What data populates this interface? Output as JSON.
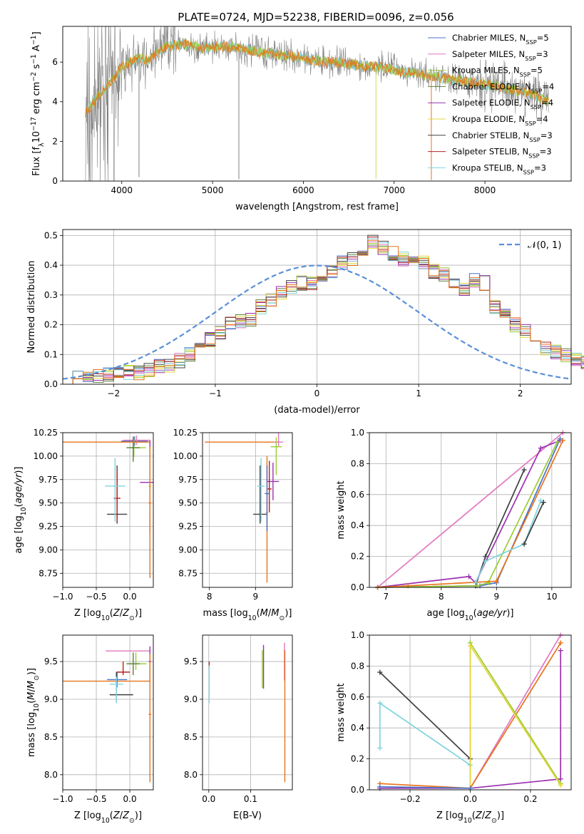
{
  "figure": {
    "title": "PLATE=0724, MJD=52238, FIBERID=0096, z=0.056"
  },
  "model_colors": {
    "Chabrier MILES": "#4c72c8",
    "Salpeter MILES": "#e377c2",
    "Kroupa MILES": "#9acd32",
    "Chabrier ELODIE": "#5b7f3a",
    "Salpeter ELODIE": "#9b30b0",
    "Kroupa ELODIE": "#e6d53c",
    "Chabrier STELIB": "#404040",
    "Salpeter STELIB": "#b22222",
    "Kroupa STELIB": "#7fd4df",
    "extra_orange": "#e8731c"
  },
  "chart_data": [
    {
      "type": "line",
      "panel": "spectrum",
      "xlabel": "wavelength [Angstrom, rest frame]",
      "ylabel": "Flux [f_λ 10^-17 erg cm^-2 s^-1 A^-1]",
      "xlim": [
        3350,
        8950
      ],
      "ylim": [
        0,
        7.8
      ],
      "xticks": [
        4000,
        5000,
        6000,
        7000,
        8000
      ],
      "yticks": [
        0,
        2,
        4,
        6
      ],
      "grid": false,
      "legend_placement": "right",
      "legend": [
        {
          "name": "Chabrier MILES",
          "nssp": "5"
        },
        {
          "name": "Salpeter MILES",
          "nssp": "3"
        },
        {
          "name": "Kroupa MILES",
          "nssp": "5"
        },
        {
          "name": "Chabrier ELODIE",
          "nssp": "4"
        },
        {
          "name": "Salpeter ELODIE",
          "nssp": "4"
        },
        {
          "name": "Kroupa ELODIE",
          "nssp": "4"
        },
        {
          "name": "Chabrier STELIB",
          "nssp": "3"
        },
        {
          "name": "Salpeter STELIB",
          "nssp": "3"
        },
        {
          "name": "Kroupa STELIB",
          "nssp": "3"
        }
      ],
      "continuum": {
        "x": [
          3600,
          3700,
          3800,
          3900,
          4000,
          4100,
          4200,
          4300,
          4400,
          4500,
          4700,
          4900,
          5100,
          5300,
          5500,
          5700,
          5900,
          6100,
          6300,
          6500,
          6700,
          6900,
          7100,
          7300,
          7500,
          7700,
          7900,
          8100,
          8300,
          8500,
          8700
        ],
        "y": [
          3.5,
          4.0,
          4.6,
          5.1,
          5.8,
          6.0,
          6.2,
          6.1,
          6.5,
          6.8,
          6.9,
          6.7,
          6.8,
          6.7,
          6.5,
          6.4,
          6.3,
          6.1,
          6.0,
          5.9,
          5.8,
          5.7,
          5.5,
          5.4,
          5.2,
          5.1,
          4.9,
          4.8,
          4.6,
          4.4,
          4.0
        ]
      }
    },
    {
      "type": "histogram",
      "panel": "residuals",
      "xlabel": "(data-model)/error",
      "ylabel": "Normed distribution",
      "xlim": [
        -2.5,
        2.5
      ],
      "ylim": [
        0,
        0.52
      ],
      "xticks": [
        -2,
        -1,
        0,
        1,
        2
      ],
      "yticks": [
        0.0,
        0.1,
        0.2,
        0.3,
        0.4,
        0.5
      ],
      "grid": true,
      "legend_placement": "top-right",
      "reference_curve": "N(0,1)",
      "bin_width": 0.1,
      "hist_x_start": -2.5,
      "hist_values": [
        0.01,
        0.02,
        0.02,
        0.03,
        0.03,
        0.04,
        0.04,
        0.04,
        0.05,
        0.06,
        0.06,
        0.08,
        0.1,
        0.13,
        0.15,
        0.17,
        0.21,
        0.21,
        0.22,
        0.26,
        0.28,
        0.31,
        0.33,
        0.34,
        0.34,
        0.36,
        0.38,
        0.41,
        0.42,
        0.45,
        0.48,
        0.46,
        0.44,
        0.42,
        0.43,
        0.41,
        0.38,
        0.37,
        0.33,
        0.32,
        0.35,
        0.34,
        0.26,
        0.24,
        0.2,
        0.18,
        0.15,
        0.12,
        0.11,
        0.1,
        0.08,
        0.07,
        0.06,
        0.05,
        0.05,
        0.04,
        0.03,
        0.03,
        0.03,
        0.02,
        0.02
      ]
    },
    {
      "type": "scatter",
      "panel": "age-vs-Z",
      "xlabel": "Z [log10(Z/Z⊙)]",
      "ylabel": "age [log10(age/yr)]",
      "xlim": [
        -1.0,
        0.35
      ],
      "ylim": [
        8.6,
        10.25
      ],
      "xticks": [
        -1.0,
        -0.5,
        0.0
      ],
      "yticks": [
        8.75,
        9.0,
        9.25,
        9.5,
        9.75,
        10.0,
        10.25
      ],
      "grid": true,
      "errorbars": [
        {
          "model": "Chabrier MILES",
          "x": 0.07,
          "y": 10.16,
          "xerr": [
            0.2,
            0.2
          ],
          "yerr": [
            0.05,
            0.05
          ]
        },
        {
          "model": "Salpeter MILES",
          "x": 0.1,
          "y": 10.17,
          "xerr": [
            0.2,
            0.2
          ],
          "yerr": [
            0.05,
            0.05
          ]
        },
        {
          "model": "Kroupa MILES",
          "x": 0.06,
          "y": 10.09,
          "xerr": [
            0.06,
            0.18
          ],
          "yerr": [
            0.1,
            0.1
          ]
        },
        {
          "model": "Chabrier ELODIE",
          "x": 0.05,
          "y": 10.09,
          "xerr": [
            0.1,
            0.1
          ],
          "yerr": [
            0.15,
            0.12
          ]
        },
        {
          "model": "Salpeter ELODIE",
          "x": 0.3,
          "y": 9.72,
          "xerr": [
            0.15,
            0.05
          ],
          "yerr": [
            0.55,
            0.45
          ]
        },
        {
          "model": "Kroupa ELODIE",
          "x": 0.3,
          "y": 9.68,
          "xerr": [
            0.02,
            0.02
          ],
          "yerr": [
            0.3,
            0.3
          ]
        },
        {
          "model": "Chabrier STELIB",
          "x": -0.19,
          "y": 9.38,
          "xerr": [
            0.15,
            0.15
          ],
          "yerr": [
            0.1,
            0.52
          ]
        },
        {
          "model": "Salpeter STELIB",
          "x": -0.19,
          "y": 9.55,
          "xerr": [
            0.05,
            0.05
          ],
          "yerr": [
            0.25,
            0.3
          ]
        },
        {
          "model": "Kroupa STELIB",
          "x": -0.22,
          "y": 9.68,
          "xerr": [
            0.15,
            0.15
          ],
          "yerr": [
            0.38,
            0.3
          ]
        },
        {
          "model": "extra_orange",
          "x": -0.4,
          "y": 10.15,
          "xerr": [
            0.6,
            0.7
          ],
          "yerr": [
            0.0,
            0.0
          ]
        },
        {
          "model": "extra_orange",
          "x": 0.3,
          "y": 9.5,
          "xerr": [
            0.02,
            0.02
          ],
          "yerr": [
            0.8,
            0.6
          ]
        }
      ]
    },
    {
      "type": "scatter",
      "panel": "age-vs-mass",
      "xlabel": "mass [log10(M/M⊙)]",
      "ylabel": "",
      "xlim": [
        7.85,
        9.8
      ],
      "ylim": [
        8.6,
        10.25
      ],
      "xticks": [
        8,
        9
      ],
      "yticks": [
        8.75,
        9.0,
        9.25,
        9.5,
        9.75,
        10.0,
        10.25
      ],
      "grid": true,
      "errorbars": [
        {
          "model": "extra_orange",
          "x": 8.7,
          "y": 10.15,
          "xerr": [
            0.8,
            0.8
          ],
          "yerr": [
            0.0,
            0.0
          ]
        },
        {
          "model": "Salpeter MILES",
          "x": 9.5,
          "y": 10.15,
          "xerr": [
            0.1,
            0.1
          ],
          "yerr": [
            0.05,
            1.0
          ]
        },
        {
          "model": "Kroupa MILES",
          "x": 9.45,
          "y": 10.1,
          "xerr": [
            0.12,
            0.12
          ],
          "yerr": [
            0.3,
            0.1
          ]
        },
        {
          "model": "Salpeter ELODIE",
          "x": 9.38,
          "y": 9.73,
          "xerr": [
            0.13,
            0.13
          ],
          "yerr": [
            0.2,
            0.2
          ]
        },
        {
          "model": "Chabrier STELIB",
          "x": 9.1,
          "y": 9.38,
          "xerr": [
            0.15,
            0.15
          ],
          "yerr": [
            0.1,
            0.52
          ]
        },
        {
          "model": "Salpeter STELIB",
          "x": 9.3,
          "y": 9.65,
          "xerr": [
            0.05,
            0.05
          ],
          "yerr": [
            0.25,
            0.3
          ]
        },
        {
          "model": "Kroupa STELIB",
          "x": 9.12,
          "y": 9.68,
          "xerr": [
            0.08,
            0.08
          ],
          "yerr": [
            0.38,
            0.3
          ]
        },
        {
          "model": "extra_orange",
          "x": 9.25,
          "y": 9.4,
          "xerr": [
            0.02,
            0.02
          ],
          "yerr": [
            0.75,
            0.6
          ]
        },
        {
          "model": "Chabrier MILES",
          "x": 9.25,
          "y": 9.6,
          "xerr": [
            0.05,
            0.05
          ],
          "yerr": [
            0.4,
            0.3
          ]
        }
      ]
    },
    {
      "type": "line",
      "panel": "mass-weight-vs-age",
      "xlabel": "age [log10(age/yr)]",
      "ylabel": "mass weight",
      "xlim": [
        6.7,
        10.35
      ],
      "ylim": [
        0,
        1.0
      ],
      "xticks": [
        7,
        8,
        9,
        10
      ],
      "yticks": [
        0.0,
        0.2,
        0.4,
        0.6,
        0.8,
        1.0
      ],
      "grid": true,
      "series": [
        {
          "model": "Salpeter MILES",
          "x": [
            6.85,
            10.2
          ],
          "y": [
            0.0,
            1.0
          ]
        },
        {
          "model": "Chabrier STELIB",
          "x": [
            6.85,
            8.62,
            8.8,
            9.5
          ],
          "y": [
            0.0,
            0.01,
            0.2,
            0.76
          ]
        },
        {
          "model": "Salpeter ELODIE",
          "x": [
            6.85,
            8.5,
            8.62,
            9.8,
            10.15
          ],
          "y": [
            0.0,
            0.07,
            0.03,
            0.9,
            0.95
          ]
        },
        {
          "model": "Chabrier MILES",
          "x": [
            6.85,
            8.7,
            9.0,
            10.15
          ],
          "y": [
            0.0,
            0.01,
            0.03,
            0.96
          ]
        },
        {
          "model": "Kroupa MILES",
          "x": [
            6.85,
            8.65,
            8.85,
            10.1
          ],
          "y": [
            0.0,
            0.01,
            0.03,
            0.94
          ]
        },
        {
          "model": "extra_orange",
          "x": [
            6.85,
            7.4,
            9.0,
            10.2
          ],
          "y": [
            0.0,
            0.01,
            0.04,
            0.95
          ]
        },
        {
          "model": "Kroupa STELIB",
          "x": [
            8.62,
            8.8,
            9.5,
            9.8
          ],
          "y": [
            0.03,
            0.17,
            0.28,
            0.56
          ]
        },
        {
          "model": "Chabrier STELIB",
          "x": [
            9.5,
            9.85
          ],
          "y": [
            0.28,
            0.55
          ]
        }
      ]
    },
    {
      "type": "scatter",
      "panel": "mass-vs-Z",
      "xlabel": "Z [log10(Z/Z⊙)]",
      "ylabel": "mass [log10(M/M⊙)]",
      "xlim": [
        -1.0,
        0.35
      ],
      "ylim": [
        7.8,
        9.85
      ],
      "xticks": [
        -1.0,
        -0.5,
        0.0
      ],
      "yticks": [
        8.0,
        8.5,
        9.0,
        9.5
      ],
      "grid": true,
      "errorbars": [
        {
          "model": "extra_orange",
          "x": -0.4,
          "y": 9.24,
          "xerr": [
            0.6,
            0.7
          ],
          "yerr": [
            0.0,
            0.0
          ]
        },
        {
          "model": "Salpeter MILES",
          "x": -0.03,
          "y": 9.64,
          "xerr": [
            0.33,
            0.33
          ],
          "yerr": [
            0.0,
            0.0
          ]
        },
        {
          "model": "Kroupa MILES",
          "x": 0.09,
          "y": 9.47,
          "xerr": [
            0.12,
            0.16
          ],
          "yerr": [
            0.08,
            0.15
          ]
        },
        {
          "model": "Chabrier ELODIE",
          "x": 0.05,
          "y": 9.47,
          "xerr": [
            0.1,
            0.1
          ],
          "yerr": [
            0.15,
            0.15
          ]
        },
        {
          "model": "Salpeter ELODIE",
          "x": 0.3,
          "y": 9.5,
          "xerr": [
            0.02,
            0.02
          ],
          "yerr": [
            0.25,
            0.2
          ]
        },
        {
          "model": "Chabrier MILES",
          "x": -0.19,
          "y": 9.26,
          "xerr": [
            0.15,
            0.15
          ],
          "yerr": [
            0.1,
            0.1
          ]
        },
        {
          "model": "Salpeter STELIB",
          "x": -0.1,
          "y": 9.36,
          "xerr": [
            0.1,
            0.1
          ],
          "yerr": [
            0.04,
            0.14
          ]
        },
        {
          "model": "Chabrier STELIB",
          "x": -0.2,
          "y": 9.06,
          "xerr": [
            0.1,
            0.25
          ],
          "yerr": [
            0.1,
            0.3
          ]
        },
        {
          "model": "Kroupa STELIB",
          "x": -0.2,
          "y": 9.2,
          "xerr": [
            0.1,
            0.1
          ],
          "yerr": [
            0.25,
            0.1
          ]
        },
        {
          "model": "extra_orange",
          "x": 0.3,
          "y": 8.8,
          "xerr": [
            0.02,
            0.02
          ],
          "yerr": [
            0.9,
            0.8
          ]
        }
      ]
    },
    {
      "type": "scatter",
      "panel": "mass-vs-EBV",
      "xlabel": "E(B-V)",
      "ylabel": "",
      "xlim": [
        -0.015,
        0.2
      ],
      "ylim": [
        7.8,
        9.85
      ],
      "xticks": [
        0.0,
        0.1
      ],
      "yticks": [
        8.0,
        8.5,
        9.0,
        9.5
      ],
      "grid": true,
      "errorbars": [
        {
          "model": "Salpeter STELIB",
          "x": 0.001,
          "y": 9.45,
          "xerr": [
            0.0,
            0.0
          ],
          "yerr": [
            0.05,
            0.05
          ]
        },
        {
          "model": "Kroupa STELIB",
          "x": 0.001,
          "y": 9.2,
          "xerr": [
            0.0,
            0.0
          ],
          "yerr": [
            0.25,
            0.25
          ]
        },
        {
          "model": "Kroupa MILES",
          "x": 0.128,
          "y": 9.4,
          "xerr": [
            0.0,
            0.0
          ],
          "yerr": [
            0.25,
            0.25
          ]
        },
        {
          "model": "Salpeter ELODIE",
          "x": 0.131,
          "y": 9.42,
          "xerr": [
            0.0,
            0.0
          ],
          "yerr": [
            0.28,
            0.3
          ]
        },
        {
          "model": "Salpeter MILES",
          "x": 0.181,
          "y": 9.5,
          "xerr": [
            0.0,
            0.0
          ],
          "yerr": [
            0.25,
            0.25
          ]
        },
        {
          "model": "extra_orange",
          "x": 0.182,
          "y": 8.8,
          "xerr": [
            0.0,
            0.0
          ],
          "yerr": [
            0.9,
            0.85
          ]
        }
      ]
    },
    {
      "type": "line",
      "panel": "mass-weight-vs-Z",
      "xlabel": "Z [log10(Z/Z⊙)]",
      "ylabel": "mass weight",
      "xlim": [
        -0.335,
        0.335
      ],
      "ylim": [
        0,
        1.0
      ],
      "xticks": [
        -0.2,
        0.0,
        0.2
      ],
      "yticks": [
        0.0,
        0.2,
        0.4,
        0.6,
        0.8,
        1.0
      ],
      "grid": true,
      "series": [
        {
          "model": "Chabrier STELIB",
          "x": [
            -0.3,
            0.0
          ],
          "y": [
            0.76,
            0.2
          ]
        },
        {
          "model": "Kroupa STELIB",
          "x": [
            -0.3,
            -0.3,
            0.0
          ],
          "y": [
            0.27,
            0.56,
            0.16
          ]
        },
        {
          "model": "Salpeter MILES",
          "x": [
            0.0,
            0.3
          ],
          "y": [
            0.01,
            1.0
          ]
        },
        {
          "model": "extra_orange",
          "x": [
            -0.3,
            0.0,
            0.3
          ],
          "y": [
            0.04,
            0.01,
            0.95
          ]
        },
        {
          "model": "Salpeter ELODIE",
          "x": [
            -0.3,
            0.0,
            0.3,
            0.3
          ],
          "y": [
            0.01,
            0.01,
            0.07,
            0.9
          ]
        },
        {
          "model": "Kroupa MILES",
          "x": [
            0.0,
            0.0,
            0.3
          ],
          "y": [
            0.01,
            0.95,
            0.04
          ]
        },
        {
          "model": "Kroupa ELODIE",
          "x": [
            0.0,
            0.0,
            0.3
          ],
          "y": [
            0.01,
            0.93,
            0.03
          ]
        },
        {
          "model": "Chabrier MILES",
          "x": [
            -0.3,
            0.0
          ],
          "y": [
            0.02,
            0.01
          ]
        }
      ]
    }
  ]
}
